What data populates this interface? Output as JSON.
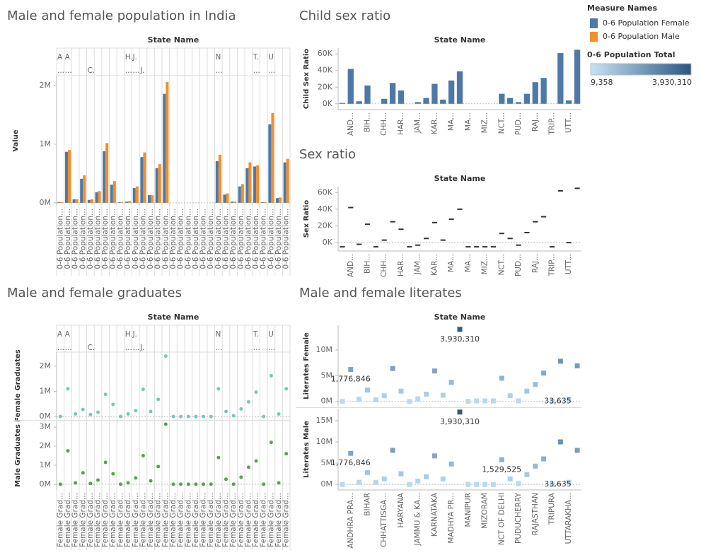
{
  "chart_data": [
    {
      "type": "bar",
      "title": "Male and female population in India",
      "header": "State Name",
      "categories": [
        "A",
        "A",
        null,
        null,
        null,
        null,
        null,
        null,
        null,
        "H.",
        "J.",
        null,
        null,
        null,
        null,
        null,
        null,
        null,
        null,
        null,
        null,
        "N",
        null,
        null,
        null,
        null,
        "T.",
        null,
        "U",
        null,
        null
      ],
      "subcategories": [
        "...",
        "...",
        null,
        null,
        "C.",
        null,
        null,
        null,
        null,
        "...",
        "...",
        "J.",
        null,
        null,
        null,
        null,
        null,
        null,
        null,
        null,
        null,
        "...",
        null,
        null,
        null,
        null,
        "...",
        null,
        "...",
        null,
        null
      ],
      "x_label": "0-6 Population...",
      "y_title": "Value",
      "legend_title": "Measure Names",
      "series": [
        {
          "name": "0-6 Population Female",
          "color": "#4e79a7",
          "values": [
            0.01,
            0.87,
            0.06,
            0.41,
            0.05,
            0.18,
            0.88,
            0.31,
            0.01,
            0.02,
            0.25,
            0.78,
            0.13,
            0.59,
            1.86,
            0,
            0,
            0,
            0,
            0,
            0,
            0.71,
            0.14,
            0.02,
            0.28,
            0.59,
            0.62,
            0.01,
            1.34,
            0.08,
            0.69
          ]
        },
        {
          "name": "0-6 Population Male",
          "color": "#f28e2b",
          "values": [
            0.01,
            0.9,
            0.06,
            0.47,
            0.06,
            0.2,
            1.02,
            0.37,
            0.01,
            0.03,
            0.28,
            0.86,
            0.13,
            0.66,
            2.06,
            0,
            0,
            0,
            0,
            0,
            0,
            0.82,
            0.16,
            0.02,
            0.32,
            0.69,
            0.64,
            0.01,
            1.53,
            0.09,
            0.75
          ]
        }
      ],
      "ylim": [
        -0.05,
        2.17
      ],
      "yticks": [
        {
          "value": 0,
          "label": "0M"
        },
        {
          "value": 1,
          "label": "1M"
        },
        {
          "value": 2,
          "label": "2M"
        }
      ]
    },
    {
      "type": "bar",
      "title": "Child sex ratio",
      "header": "State Name",
      "y_title": "Child Sex Ratio",
      "color": "#4e79a7",
      "categories": [
        null,
        "AND...",
        null,
        "BIH...",
        null,
        "CHH...",
        null,
        "HAR...",
        null,
        "JAM...",
        null,
        "KAR...",
        null,
        "MA...",
        null,
        "MA...",
        null,
        "MIZ...",
        null,
        "NCT...",
        null,
        "PUD...",
        null,
        "RAJ...",
        null,
        "TRIP...",
        null,
        "UTT...",
        null
      ],
      "values": [
        1,
        42,
        3,
        22,
        0,
        6,
        25,
        16,
        0,
        2,
        7,
        24,
        5,
        28,
        39,
        0,
        0,
        0,
        0,
        12,
        7,
        2,
        12,
        26,
        31,
        0,
        61,
        4,
        65
      ],
      "ylim": [
        -7,
        67
      ],
      "yticks": [
        {
          "value": 0,
          "label": "0K"
        },
        {
          "value": 20,
          "label": "20K"
        },
        {
          "value": 40,
          "label": "40K"
        },
        {
          "value": 60,
          "label": "60K"
        }
      ]
    },
    {
      "type": "gantt",
      "title": "Sex ratio",
      "header": "State Name",
      "y_title": "Sex Ratio",
      "color": "#333333",
      "categories": [
        null,
        "AND...",
        null,
        "BIH...",
        null,
        "CHH...",
        null,
        "HAR...",
        null,
        "JAM...",
        null,
        "KAR...",
        null,
        "MA...",
        null,
        "MA...",
        null,
        "MIZ...",
        null,
        "NCT...",
        null,
        "PUD...",
        null,
        "RAJ...",
        null,
        "TRIP...",
        null,
        "UTT...",
        null
      ],
      "values": [
        -5,
        42,
        -2,
        22,
        -5,
        3,
        25,
        16,
        -5,
        -3,
        5,
        24,
        3,
        28,
        40,
        -5,
        -5,
        -5,
        -5,
        11,
        5,
        -3,
        12,
        25,
        31,
        -5,
        62,
        0,
        65
      ],
      "ylim": [
        -10,
        67
      ],
      "yticks": [
        {
          "value": 0,
          "label": "0K"
        },
        {
          "value": 20,
          "label": "20K"
        },
        {
          "value": 40,
          "label": "40K"
        },
        {
          "value": 60,
          "label": "60K"
        }
      ]
    },
    {
      "type": "scatter",
      "marker": "circle",
      "title": "Male and female graduates",
      "header": "State Name",
      "categories": [
        "A",
        "A",
        null,
        null,
        null,
        null,
        null,
        null,
        null,
        "H.",
        "J.",
        null,
        null,
        null,
        null,
        null,
        null,
        null,
        null,
        null,
        null,
        "N",
        null,
        null,
        null,
        null,
        "T.",
        null,
        "U",
        null,
        null
      ],
      "subcategories": [
        "...",
        "...",
        null,
        null,
        "C.",
        null,
        null,
        null,
        null,
        "...",
        "...",
        "J.",
        null,
        null,
        null,
        null,
        null,
        null,
        null,
        null,
        null,
        "...",
        null,
        null,
        null,
        null,
        "...",
        null,
        "...",
        null,
        null
      ],
      "x_label": "Female Grad...",
      "series": [
        {
          "name": "Female Graduates",
          "color": "#76c7bd",
          "values": [
            0,
            1.1,
            0.1,
            0.28,
            0.08,
            0.17,
            0.88,
            0.48,
            0,
            0.1,
            0.23,
            1.08,
            0.2,
            0.68,
            2.4,
            0,
            0,
            0,
            0,
            0,
            0,
            1.1,
            0.2,
            0.03,
            0.3,
            0.58,
            0.97,
            0,
            1.62,
            0.1,
            1.1
          ],
          "ylim": [
            -0.11,
            2.56
          ],
          "yticks": [
            {
              "value": 0,
              "label": "0M"
            },
            {
              "value": 1,
              "label": "1M"
            },
            {
              "value": 2,
              "label": "2M"
            }
          ]
        },
        {
          "name": "Male Graduates",
          "color": "#59a14f",
          "values": [
            0,
            1.75,
            0.07,
            0.6,
            0.04,
            0.22,
            1.15,
            0.55,
            0,
            0.07,
            0.33,
            1.5,
            0.18,
            0.93,
            3.15,
            0,
            0,
            0,
            0,
            0,
            0,
            1.4,
            0.26,
            0,
            0.37,
            0.89,
            1.22,
            0,
            2.2,
            0.07,
            1.6
          ],
          "ylim": [
            -0.3,
            3.3
          ],
          "yticks": [
            {
              "value": 0,
              "label": "0M"
            },
            {
              "value": 1,
              "label": "1M"
            },
            {
              "value": 2,
              "label": "2M"
            },
            {
              "value": 3,
              "label": "3M"
            }
          ]
        }
      ]
    },
    {
      "type": "scatter",
      "marker": "square",
      "title": "Male and female literates",
      "header": "State Name",
      "categories": [
        null,
        "ANDHRA PRA...",
        null,
        "BIHAR",
        null,
        "CHHATTISGA...",
        null,
        "HARYANA",
        null,
        "JAMMU & KA...",
        null,
        "KARNATAKA",
        null,
        "MADHYA PR...",
        null,
        "MANIPUR",
        null,
        "MIZORAM",
        null,
        "NCT OF DELHI",
        null,
        "PUDUCHERRY",
        null,
        "RAJASTHAN",
        null,
        "TRIPURA",
        null,
        "UTTARAKHA...",
        null
      ],
      "series": [
        {
          "name": "Literates Female",
          "values": [
            0,
            6.2,
            0.4,
            2.2,
            0.3,
            1.1,
            6.4,
            2.0,
            0,
            0.5,
            1.4,
            5.9,
            1.2,
            3.7,
            14,
            0,
            0.1,
            0.1,
            0.1,
            4.5,
            1.1,
            0.1,
            2.0,
            3.3,
            5.5,
            0,
            7.8,
            0.4,
            6.9
          ],
          "ylim": [
            -1,
            14.8
          ],
          "yticks": [
            {
              "value": 0,
              "label": "0M"
            },
            {
              "value": 5,
              "label": "5M"
            },
            {
              "value": 10,
              "label": "10M"
            }
          ],
          "annotations": [
            {
              "index": 1,
              "text": "1,776,846"
            },
            {
              "index": 14,
              "text": "3,930,310"
            },
            {
              "index": 25,
              "text": "33,635"
            }
          ]
        },
        {
          "name": "Literates Male",
          "values": [
            0,
            7.3,
            0.5,
            2.8,
            0.5,
            1.3,
            8.0,
            2.5,
            0,
            0.8,
            1.8,
            6.7,
            1.3,
            4.8,
            17,
            0,
            0,
            0,
            0,
            5.8,
            1.3,
            0.2,
            2.3,
            4.3,
            6.0,
            0,
            10,
            0.5,
            8.0
          ],
          "ylim": [
            -1.3,
            17.8
          ],
          "yticks": [
            {
              "value": 0,
              "label": "0M"
            },
            {
              "value": 5,
              "label": "5M"
            },
            {
              "value": 10,
              "label": "10M"
            },
            {
              "value": 15,
              "label": "15M"
            }
          ],
          "annotations": [
            {
              "index": 1,
              "text": "1,776,846"
            },
            {
              "index": 14,
              "text": "3,930,310"
            },
            {
              "index": 19,
              "text": "1,529,525"
            },
            {
              "index": 25,
              "text": "33,635"
            }
          ]
        }
      ],
      "color_legend": {
        "title": "0-6 Population Total",
        "min_label": "9,358",
        "max_label": "3,930,310",
        "colors": [
          "#c6e3f5",
          "#2a5783"
        ]
      }
    }
  ]
}
